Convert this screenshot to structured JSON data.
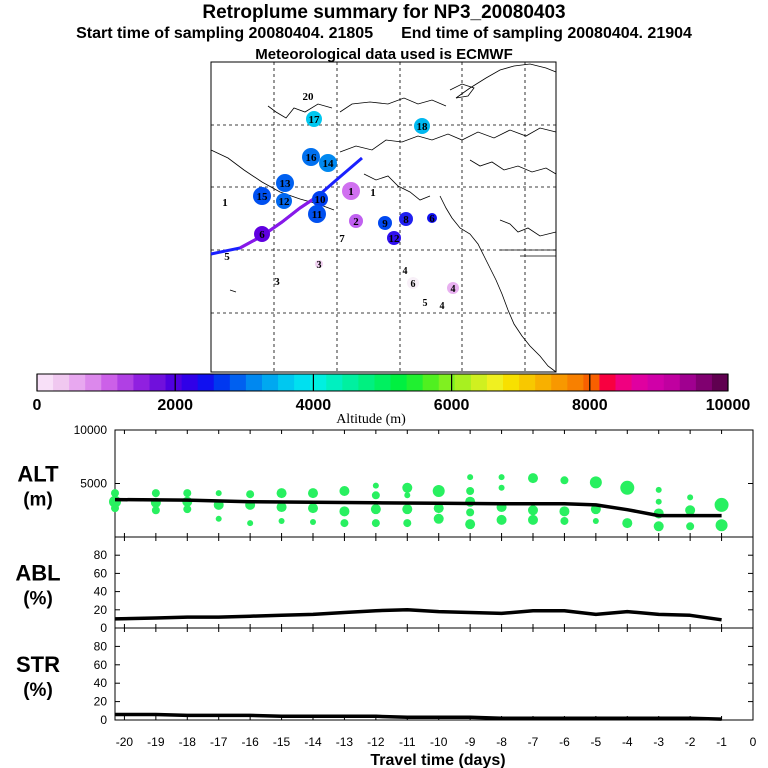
{
  "header": {
    "title": "Retroplume summary for NP3_20080403",
    "start_label": "Start time of sampling 20080404. 21805",
    "end_label": "End time of sampling 20080404. 21904",
    "met_label": "Meteorological data used is ECMWF"
  },
  "colorbar": {
    "label": "Altitude (m)",
    "ticks": [
      "0",
      "2000",
      "4000",
      "6000",
      "8000",
      "10000"
    ],
    "colors": [
      "#f8e0f8",
      "#f0c8f0",
      "#e8a8f0",
      "#dc88ec",
      "#cc60e8",
      "#b040e4",
      "#9020e0",
      "#7010dc",
      "#5000e0",
      "#3000e8",
      "#1010f0",
      "#0038f0",
      "#0060f0",
      "#0088f0",
      "#00a8f0",
      "#00c8f0",
      "#00e0f0",
      "#00f0e0",
      "#00f0c0",
      "#00f0a0",
      "#00f080",
      "#00f060",
      "#00f040",
      "#20f030",
      "#50f020",
      "#80f020",
      "#a8f020",
      "#d0f020",
      "#f0f020",
      "#f8e000",
      "#f8c800",
      "#f8b000",
      "#f89800",
      "#f88000",
      "#f86000",
      "#f80040",
      "#f00080",
      "#e000a0",
      "#d000a8",
      "#c000a0",
      "#a00090",
      "#800070",
      "#600050"
    ]
  },
  "map": {
    "site_labels": [
      {
        "text": "20",
        "color": "#00d8f0"
      },
      {
        "text": "17",
        "color": "#00c8f0"
      },
      {
        "text": "18",
        "color": "#00b8f0"
      },
      {
        "text": "16",
        "color": "#0070f0"
      },
      {
        "text": "14",
        "color": "#0088f0"
      },
      {
        "text": "13",
        "color": "#0060f0"
      },
      {
        "text": "15",
        "color": "#0050f0"
      },
      {
        "text": "12",
        "color": "#0068f0"
      },
      {
        "text": "1",
        "color": "#0090f0"
      },
      {
        "text": "10",
        "color": "#0040f0"
      },
      {
        "text": "11",
        "color": "#0050f0"
      },
      {
        "text": "1",
        "color": "#d070f0"
      },
      {
        "text": "1",
        "color": "#e8b0f0"
      },
      {
        "text": "2",
        "color": "#c060f0"
      },
      {
        "text": "9",
        "color": "#0048f0"
      },
      {
        "text": "8",
        "color": "#2020f0"
      },
      {
        "text": "6",
        "color": "#1010f0"
      },
      {
        "text": "7",
        "color": "#e8c8f0"
      },
      {
        "text": "12",
        "color": "#3010f0"
      },
      {
        "text": "6",
        "color": "#6000e0"
      },
      {
        "text": "5",
        "color": "#f8e8f8"
      },
      {
        "text": "3",
        "color": "#f0d0f0"
      },
      {
        "text": "4",
        "color": "#f8e8f8"
      },
      {
        "text": "6",
        "color": "#f8f0f8"
      },
      {
        "text": "3",
        "color": "#e8b0f0"
      },
      {
        "text": "4",
        "color": "#e8b0f0"
      },
      {
        "text": "5",
        "color": "#f8f0f8"
      },
      {
        "text": "4",
        "color": "#f8f0f8"
      }
    ]
  },
  "chart_data": [
    {
      "type": "scatter",
      "name": "ALT",
      "ylabel_line1": "ALT",
      "ylabel_line2": "(m)",
      "ylim": [
        0,
        10000
      ],
      "yticks": [
        {
          "value": 0,
          "label": ""
        },
        {
          "value": 5000,
          "label": "5000"
        },
        {
          "value": 10000,
          "label": "10000"
        }
      ],
      "xlim": [
        -20.3,
        0
      ],
      "line": {
        "x": [
          -20.3,
          -18,
          -16,
          -14,
          -12,
          -10,
          -8,
          -6,
          -5,
          -4,
          -3,
          -2,
          -1
        ],
        "y": [
          3500,
          3450,
          3300,
          3250,
          3200,
          3150,
          3100,
          3100,
          3000,
          2550,
          2000,
          2000,
          2000
        ]
      },
      "points": [
        {
          "x": -20.3,
          "y": 3300,
          "s": 6
        },
        {
          "x": -20.3,
          "y": 4100,
          "s": 4
        },
        {
          "x": -20.3,
          "y": 2700,
          "s": 4
        },
        {
          "x": -19,
          "y": 4100,
          "s": 4
        },
        {
          "x": -19,
          "y": 3200,
          "s": 5
        },
        {
          "x": -19,
          "y": 2500,
          "s": 4
        },
        {
          "x": -18,
          "y": 4100,
          "s": 4
        },
        {
          "x": -18,
          "y": 3300,
          "s": 5
        },
        {
          "x": -18,
          "y": 2600,
          "s": 4
        },
        {
          "x": -17,
          "y": 4100,
          "s": 3
        },
        {
          "x": -17,
          "y": 3000,
          "s": 5
        },
        {
          "x": -17,
          "y": 1700,
          "s": 3
        },
        {
          "x": -16,
          "y": 4000,
          "s": 4
        },
        {
          "x": -16,
          "y": 3000,
          "s": 5
        },
        {
          "x": -16,
          "y": 1300,
          "s": 3
        },
        {
          "x": -15,
          "y": 4100,
          "s": 5
        },
        {
          "x": -15,
          "y": 2800,
          "s": 5
        },
        {
          "x": -15,
          "y": 1500,
          "s": 3
        },
        {
          "x": -14,
          "y": 4100,
          "s": 5
        },
        {
          "x": -14,
          "y": 2700,
          "s": 5
        },
        {
          "x": -14,
          "y": 1400,
          "s": 3
        },
        {
          "x": -13,
          "y": 4300,
          "s": 5
        },
        {
          "x": -13,
          "y": 2400,
          "s": 5
        },
        {
          "x": -13,
          "y": 1300,
          "s": 4
        },
        {
          "x": -12,
          "y": 4800,
          "s": 3
        },
        {
          "x": -12,
          "y": 3900,
          "s": 4
        },
        {
          "x": -12,
          "y": 2600,
          "s": 5
        },
        {
          "x": -12,
          "y": 1300,
          "s": 4
        },
        {
          "x": -11,
          "y": 4600,
          "s": 5
        },
        {
          "x": -11,
          "y": 3900,
          "s": 3
        },
        {
          "x": -11,
          "y": 2600,
          "s": 5
        },
        {
          "x": -11,
          "y": 1300,
          "s": 4
        },
        {
          "x": -10,
          "y": 4300,
          "s": 6
        },
        {
          "x": -10,
          "y": 2700,
          "s": 5
        },
        {
          "x": -10,
          "y": 1700,
          "s": 5
        },
        {
          "x": -9,
          "y": 5600,
          "s": 3
        },
        {
          "x": -9,
          "y": 4300,
          "s": 4
        },
        {
          "x": -9,
          "y": 3300,
          "s": 5
        },
        {
          "x": -9,
          "y": 2300,
          "s": 4
        },
        {
          "x": -9,
          "y": 1200,
          "s": 5
        },
        {
          "x": -8,
          "y": 5600,
          "s": 3
        },
        {
          "x": -8,
          "y": 4600,
          "s": 3
        },
        {
          "x": -8,
          "y": 2800,
          "s": 5
        },
        {
          "x": -8,
          "y": 1600,
          "s": 5
        },
        {
          "x": -7,
          "y": 5500,
          "s": 5
        },
        {
          "x": -7,
          "y": 2500,
          "s": 5
        },
        {
          "x": -7,
          "y": 1600,
          "s": 5
        },
        {
          "x": -6,
          "y": 5300,
          "s": 4
        },
        {
          "x": -6,
          "y": 2400,
          "s": 5
        },
        {
          "x": -6,
          "y": 1500,
          "s": 4
        },
        {
          "x": -5,
          "y": 5100,
          "s": 6
        },
        {
          "x": -5,
          "y": 2600,
          "s": 5
        },
        {
          "x": -5,
          "y": 1500,
          "s": 3
        },
        {
          "x": -4,
          "y": 4600,
          "s": 7
        },
        {
          "x": -4,
          "y": 1300,
          "s": 5
        },
        {
          "x": -3,
          "y": 4400,
          "s": 3
        },
        {
          "x": -3,
          "y": 3300,
          "s": 3
        },
        {
          "x": -3,
          "y": 2200,
          "s": 5
        },
        {
          "x": -3,
          "y": 1000,
          "s": 5
        },
        {
          "x": -2,
          "y": 3700,
          "s": 3
        },
        {
          "x": -2,
          "y": 2500,
          "s": 5
        },
        {
          "x": -2,
          "y": 1000,
          "s": 4
        },
        {
          "x": -1,
          "y": 3000,
          "s": 7
        },
        {
          "x": -1,
          "y": 1100,
          "s": 6
        }
      ]
    },
    {
      "type": "line",
      "name": "ABL",
      "ylabel_line1": "ABL",
      "ylabel_line2": "(%)",
      "ylim": [
        0,
        100
      ],
      "yticks": [
        {
          "value": 0,
          "label": "0"
        },
        {
          "value": 20,
          "label": "20"
        },
        {
          "value": 40,
          "label": "40"
        },
        {
          "value": 60,
          "label": "60"
        },
        {
          "value": 80,
          "label": "80"
        }
      ],
      "xlim": [
        -20.3,
        0
      ],
      "x": [
        -20.3,
        -19,
        -18,
        -17,
        -16,
        -15,
        -14,
        -13,
        -12,
        -11,
        -10,
        -9,
        -8,
        -7,
        -6,
        -5,
        -4,
        -3,
        -2,
        -1
      ],
      "y": [
        10,
        11,
        12,
        12,
        13,
        14,
        15,
        17,
        19,
        20,
        18,
        17,
        16,
        19,
        19,
        15,
        18,
        15,
        14,
        9
      ]
    },
    {
      "type": "line",
      "name": "STR",
      "ylabel_line1": "STR",
      "ylabel_line2": "(%)",
      "ylim": [
        0,
        100
      ],
      "yticks": [
        {
          "value": 0,
          "label": "0"
        },
        {
          "value": 20,
          "label": "20"
        },
        {
          "value": 40,
          "label": "40"
        },
        {
          "value": 60,
          "label": "60"
        },
        {
          "value": 80,
          "label": "80"
        }
      ],
      "xlim": [
        -20.3,
        0
      ],
      "x": [
        -20.3,
        -19,
        -18,
        -17,
        -16,
        -15,
        -14,
        -13,
        -12,
        -11,
        -10,
        -9,
        -8,
        -7,
        -6,
        -5,
        -4,
        -3,
        -2,
        -1
      ],
      "y": [
        6,
        6,
        5,
        5,
        5,
        4,
        4,
        4,
        4,
        3,
        3,
        3,
        2,
        2,
        2,
        2,
        2,
        2,
        2,
        1
      ],
      "xticks": [
        "-20",
        "-19",
        "-18",
        "-17",
        "-16",
        "-15",
        "-14",
        "-13",
        "-12",
        "-11",
        "-10",
        "-9",
        "-8",
        "-7",
        "-6",
        "-5",
        "-4",
        "-3",
        "-2",
        "-1",
        "0"
      ],
      "xtick_values": [
        -20,
        -19,
        -18,
        -17,
        -16,
        -15,
        -14,
        -13,
        -12,
        -11,
        -10,
        -9,
        -8,
        -7,
        -6,
        -5,
        -4,
        -3,
        -2,
        -1,
        0
      ],
      "xlabel": "Travel time (days)"
    }
  ]
}
